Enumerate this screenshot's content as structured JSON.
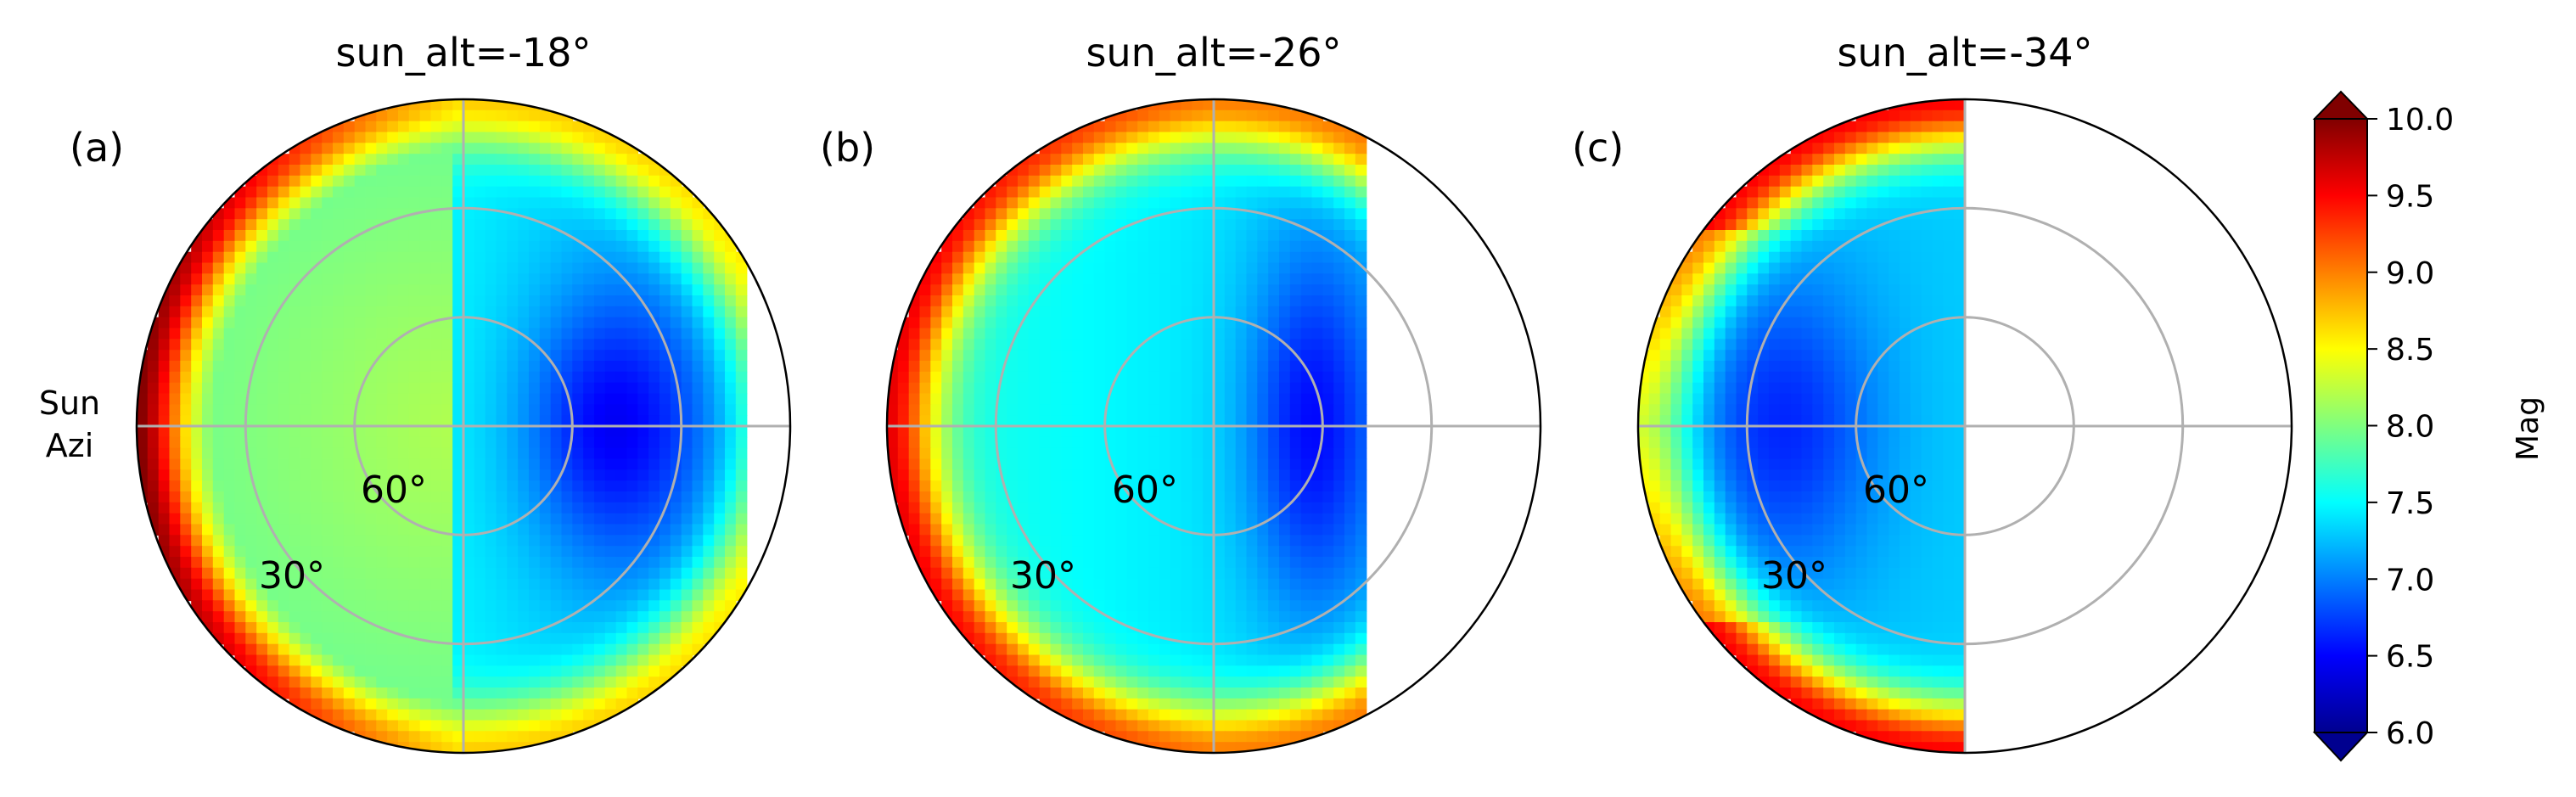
{
  "figure": {
    "side_label": [
      "Sun",
      "Azi"
    ],
    "colorbar": {
      "label": "Mag",
      "min": 6.0,
      "max": 10.0,
      "ticks": [
        "6.0",
        "6.5",
        "7.0",
        "7.5",
        "8.0",
        "8.5",
        "9.0",
        "9.5",
        "10.0"
      ],
      "tick_values": [
        6.0,
        6.5,
        7.0,
        7.5,
        8.0,
        8.5,
        9.0,
        9.5,
        10.0
      ],
      "extend": "both",
      "colormap": "jet"
    }
  },
  "chart_data": [
    {
      "type": "heatmap",
      "projection": "polar (zenith at center, horizon at edge)",
      "panel_label": "(a)",
      "title": "sun_alt=-18°",
      "ring_labels": [
        "30°",
        "60°"
      ],
      "ring_altitudes_deg": [
        30,
        60
      ],
      "grid": true,
      "value_name": "Mag",
      "approx_values": {
        "horizon_toward_sun": 10.0,
        "horizon_away_from_sun": 8.5,
        "zenith": 7.4,
        "darkest_region": 6.7,
        "darkest_region_location": "altitude ~55°, azimuth opposite the sun"
      },
      "data_coverage_edge_from_center": 0.88
    },
    {
      "type": "heatmap",
      "projection": "polar (zenith at center, horizon at edge)",
      "panel_label": "(b)",
      "title": "sun_alt=-26°",
      "ring_labels": [
        "30°",
        "60°"
      ],
      "ring_altitudes_deg": [
        30,
        60
      ],
      "grid": true,
      "value_name": "Mag",
      "approx_values": {
        "horizon_toward_sun": 9.6,
        "horizon_away_from_sun": 9.0,
        "zenith": 7.4,
        "darkest_region": 6.7,
        "darkest_region_location": "altitude ~70°, azimuth opposite the sun"
      },
      "data_coverage_edge_from_center": 0.45
    },
    {
      "type": "heatmap",
      "projection": "polar (zenith at center, horizon at edge)",
      "panel_label": "(c)",
      "title": "sun_alt=-34°",
      "ring_labels": [
        "30°",
        "60°"
      ],
      "ring_altitudes_deg": [
        30,
        60
      ],
      "grid": true,
      "value_name": "Mag",
      "approx_values": {
        "horizon_toward_sun": 8.3,
        "horizon_away_from_sun": 9.5,
        "zenith": 7.3,
        "darkest_region": 6.8,
        "darkest_region_location": "altitude ~35°, azimuth toward the sun"
      },
      "data_coverage_edge_from_center": 0.0
    }
  ]
}
